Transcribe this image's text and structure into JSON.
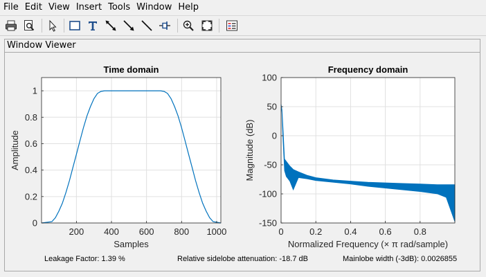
{
  "menu": [
    "File",
    "Edit",
    "View",
    "Insert",
    "Tools",
    "Window",
    "Help"
  ],
  "toolbar": [
    "print-icon",
    "print-preview-icon",
    "pointer-icon",
    "rectangle-icon",
    "text-icon",
    "double-arrow-icon",
    "arrow-icon",
    "line-icon",
    "pin-icon",
    "zoom-in-icon",
    "fit-icon",
    "legend-icon"
  ],
  "panel": {
    "title": "Window Viewer"
  },
  "status": {
    "leakage": "Leakage Factor: 1.39 %",
    "sidelobe": "Relative sidelobe attenuation: -18.7 dB",
    "mainlobe": "Mainlobe width (-3dB): 0.0026855"
  },
  "colors": {
    "line": "#0072bd",
    "grid": "#e0e0e0"
  },
  "chart_data": [
    {
      "type": "line",
      "title": "Time domain",
      "xlabel": "Samples",
      "ylabel": "Amplitude",
      "xlim": [
        1,
        1024
      ],
      "ylim": [
        0,
        1.1
      ],
      "xticks": [
        200,
        400,
        600,
        800,
        1000
      ],
      "yticks": [
        0,
        0.2,
        0.4,
        0.6,
        0.8,
        1
      ],
      "ytick_labels": [
        "0",
        "0.2",
        "0.4",
        "0.6",
        "0.8",
        "1"
      ],
      "grid": true,
      "series": [
        {
          "x": [
            1,
            60,
            80,
            100,
            120,
            140,
            160,
            180,
            200,
            220,
            240,
            260,
            280,
            300,
            320,
            340,
            360,
            380,
            400,
            420,
            440,
            460,
            480,
            500,
            512,
            530,
            560,
            590,
            620,
            650,
            680,
            700,
            720,
            740,
            760,
            780,
            800,
            820,
            840,
            860,
            880,
            900,
            920,
            940,
            960,
            980,
            1024
          ],
          "y": [
            0,
            0.01,
            0.04,
            0.09,
            0.15,
            0.23,
            0.32,
            0.42,
            0.52,
            0.62,
            0.72,
            0.81,
            0.88,
            0.94,
            0.98,
            0.995,
            1,
            1,
            1,
            1,
            1,
            1,
            1,
            1,
            1,
            1,
            1,
            1,
            1,
            1,
            1,
            0.995,
            0.98,
            0.94,
            0.88,
            0.81,
            0.72,
            0.62,
            0.52,
            0.42,
            0.32,
            0.23,
            0.15,
            0.09,
            0.04,
            0.01,
            0
          ]
        }
      ]
    },
    {
      "type": "line",
      "title": "Frequency domain",
      "xlabel": "Normalized Frequency  (× π rad/sample)",
      "ylabel": "Magnitude (dB)",
      "xlim": [
        0,
        1
      ],
      "ylim": [
        -150,
        100
      ],
      "xticks": [
        0,
        0.2,
        0.4,
        0.6,
        0.8
      ],
      "yticks": [
        -150,
        -100,
        -50,
        0,
        50,
        100
      ],
      "ytick_labels": [
        "-150",
        "-100",
        "-50",
        "0",
        "50",
        "100"
      ],
      "grid": true,
      "series": [
        {
          "x": [
            0,
            0.005,
            0.01,
            0.02,
            0.03,
            0.05,
            0.07,
            0.1,
            0.15,
            0.2,
            0.3,
            0.4,
            0.5,
            0.6,
            0.7,
            0.8,
            0.9,
            0.95,
            1
          ],
          "upper": [
            54,
            45,
            20,
            -40,
            -44,
            -52,
            -58,
            -62,
            -68,
            -72,
            -76,
            -78,
            -80,
            -81,
            -82,
            -83,
            -84,
            -84,
            -84
          ],
          "lower": [
            54,
            40,
            0,
            -60,
            -70,
            -78,
            -93,
            -72,
            -74,
            -77,
            -80,
            -83,
            -87,
            -90,
            -93,
            -96,
            -100,
            -106,
            -148
          ]
        }
      ]
    }
  ]
}
